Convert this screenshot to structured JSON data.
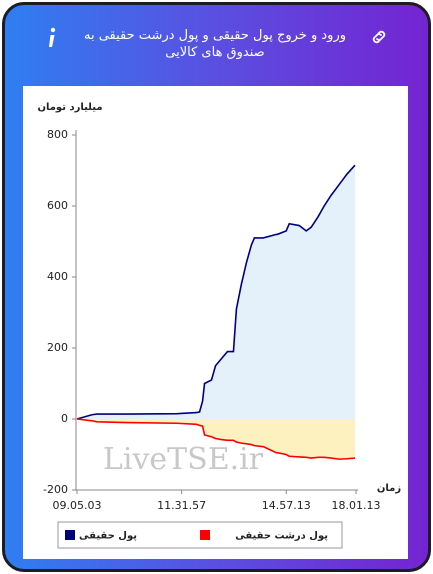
{
  "header": {
    "title": "ورود و خروج پول حقیقی و پول درشت حقیقی به صندوق های کالایی"
  },
  "chart_data": {
    "type": "line",
    "ylabel": "میلیارد تومان",
    "xlabel": "زمان",
    "watermark": "LiveTSE.ir",
    "x": [
      0,
      3,
      4,
      10,
      20,
      24,
      24.6,
      25.2,
      25.6,
      27,
      27.8,
      29,
      30.2,
      31.4,
      32,
      33,
      34,
      35,
      35.6,
      37.4,
      40,
      40.2,
      42,
      42.6,
      44.6,
      46,
      47,
      48.4,
      49.6,
      51,
      52.6,
      54.2,
      55.8
    ],
    "xlim": [
      0,
      56
    ],
    "xticks": [
      {
        "value": 0,
        "label": "09.05.03"
      },
      {
        "value": 21,
        "label": "11.31.57"
      },
      {
        "value": 42,
        "label": "14.57.13"
      },
      {
        "value": 56,
        "label": "18.01.13"
      }
    ],
    "ylim": [
      -200,
      800
    ],
    "yticks": [
      -200,
      0,
      200,
      400,
      600,
      800
    ],
    "series": [
      {
        "name": "پول حقیقی",
        "color": "#00007f",
        "fill": "#e4f1fb",
        "values": [
          0,
          12,
          14,
          14,
          15,
          18,
          20,
          50,
          100,
          110,
          150,
          170,
          190,
          190,
          310,
          380,
          440,
          490,
          510,
          510,
          520,
          520,
          530,
          550,
          545,
          530,
          540,
          570,
          600,
          630,
          660,
          690,
          715
        ]
      },
      {
        "name": "پول درشت حقیقی",
        "color": "#ff0000",
        "fill": "#fdf1bf",
        "values": [
          0,
          -5,
          -8,
          -10,
          -12,
          -15,
          -18,
          -20,
          -45,
          -50,
          -55,
          -58,
          -60,
          -60,
          -65,
          -68,
          -70,
          -72,
          -75,
          -78,
          -95,
          -95,
          -100,
          -105,
          -107,
          -108,
          -110,
          -108,
          -108,
          -110,
          -113,
          -112,
          -110
        ]
      }
    ]
  }
}
